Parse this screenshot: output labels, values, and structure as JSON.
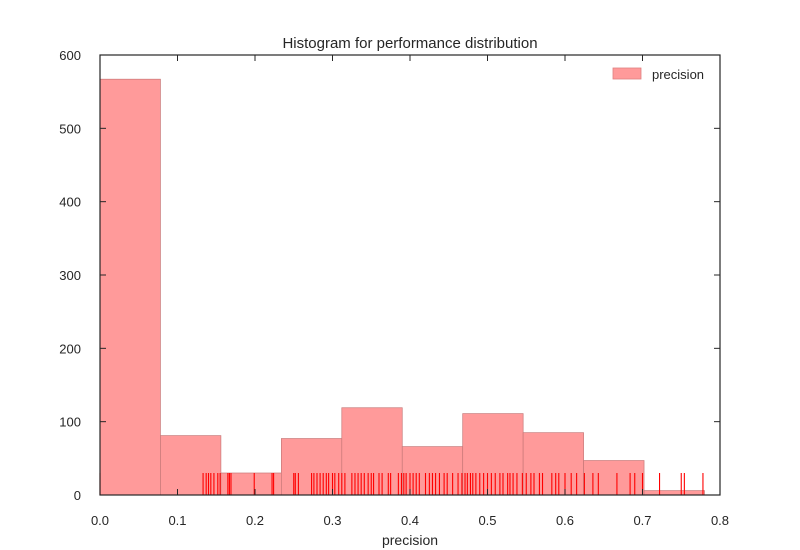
{
  "chart_data": {
    "type": "bar",
    "title": "Histogram for performance distribution",
    "xlabel": "precision",
    "ylabel": "",
    "xlim": [
      0.0,
      0.8
    ],
    "ylim": [
      0,
      600
    ],
    "xticks": [
      "0.0",
      "0.1",
      "0.2",
      "0.3",
      "0.4",
      "0.5",
      "0.6",
      "0.7",
      "0.8"
    ],
    "yticks": [
      "0",
      "100",
      "200",
      "300",
      "400",
      "500",
      "600"
    ],
    "grid": false,
    "legend_position": "top-right",
    "series": [
      {
        "name": "precision",
        "color": "#ff9a9a",
        "bin_edges": [
          0.0,
          0.078,
          0.156,
          0.234,
          0.312,
          0.39,
          0.468,
          0.546,
          0.624,
          0.702,
          0.78
        ],
        "values": [
          567,
          81,
          30,
          77,
          119,
          66,
          111,
          85,
          47,
          6
        ]
      }
    ],
    "rug": {
      "color": "#ff0000",
      "values": [
        0.0,
        0.133,
        0.137,
        0.14,
        0.143,
        0.147,
        0.152,
        0.155,
        0.165,
        0.167,
        0.169,
        0.199,
        0.222,
        0.224,
        0.25,
        0.252,
        0.256,
        0.273,
        0.276,
        0.28,
        0.284,
        0.288,
        0.292,
        0.295,
        0.3,
        0.303,
        0.308,
        0.312,
        0.316,
        0.325,
        0.329,
        0.333,
        0.337,
        0.341,
        0.346,
        0.35,
        0.353,
        0.36,
        0.364,
        0.372,
        0.375,
        0.385,
        0.389,
        0.392,
        0.395,
        0.4,
        0.404,
        0.408,
        0.412,
        0.42,
        0.425,
        0.429,
        0.433,
        0.438,
        0.444,
        0.448,
        0.455,
        0.462,
        0.467,
        0.471,
        0.474,
        0.478,
        0.481,
        0.485,
        0.49,
        0.495,
        0.5,
        0.505,
        0.51,
        0.516,
        0.52,
        0.526,
        0.529,
        0.533,
        0.538,
        0.545,
        0.55,
        0.556,
        0.56,
        0.567,
        0.571,
        0.583,
        0.588,
        0.592,
        0.6,
        0.608,
        0.615,
        0.625,
        0.636,
        0.643,
        0.667,
        0.684,
        0.69,
        0.7,
        0.722,
        0.75,
        0.754,
        0.778
      ]
    }
  }
}
